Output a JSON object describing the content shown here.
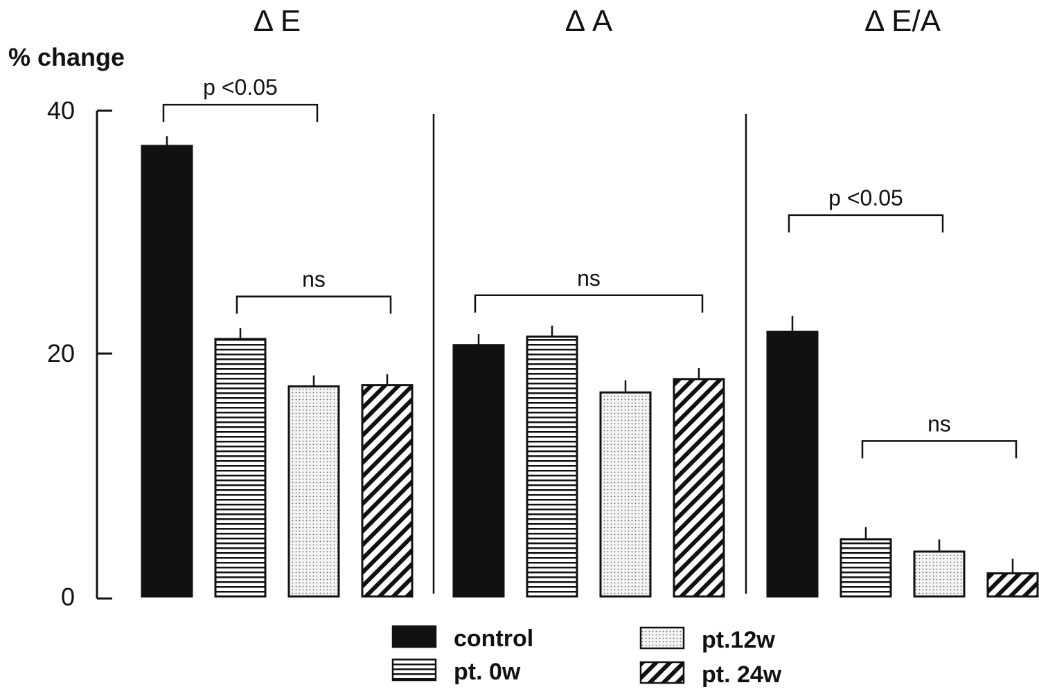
{
  "chart_data": {
    "type": "bar",
    "ylabel": "% change",
    "ylim": [
      0,
      40
    ],
    "yticks": [
      0,
      20,
      40
    ],
    "series_names": [
      "control",
      "pt. 0w",
      "pt.12w",
      "pt. 24w"
    ],
    "panels": [
      {
        "title": "Δ E",
        "values": [
          37.1,
          21.2,
          17.3,
          17.4
        ],
        "errors": [
          0.8,
          0.9,
          0.9,
          0.9
        ],
        "brackets": [
          {
            "from": 0,
            "to": 2,
            "label": "p <0.05",
            "level": 40.5
          },
          {
            "from": 1,
            "to": 3,
            "label": "ns",
            "level": 24.7
          }
        ]
      },
      {
        "title": "Δ A",
        "values": [
          20.7,
          21.4,
          16.8,
          17.9
        ],
        "errors": [
          0.9,
          0.9,
          1.0,
          0.9
        ],
        "brackets": [
          {
            "from": 0,
            "to": 3,
            "label": "ns",
            "level": 24.8
          }
        ]
      },
      {
        "title": "Δ E/A",
        "values": [
          21.8,
          4.7,
          3.7,
          1.9
        ],
        "errors": [
          1.3,
          1.0,
          1.0,
          1.2
        ],
        "brackets": [
          {
            "from": 0,
            "to": 2,
            "label": "p <0.05",
            "level": 31.4
          },
          {
            "from": 1,
            "to": 3,
            "label": "ns",
            "level": 12.8
          }
        ]
      }
    ],
    "legend": {
      "placement": "bottom",
      "entries": [
        "control",
        "pt. 0w",
        "pt.12w",
        "pt. 24w"
      ]
    },
    "grid": false
  },
  "colors": {
    "ink": "#111111",
    "dots": "#777777"
  }
}
